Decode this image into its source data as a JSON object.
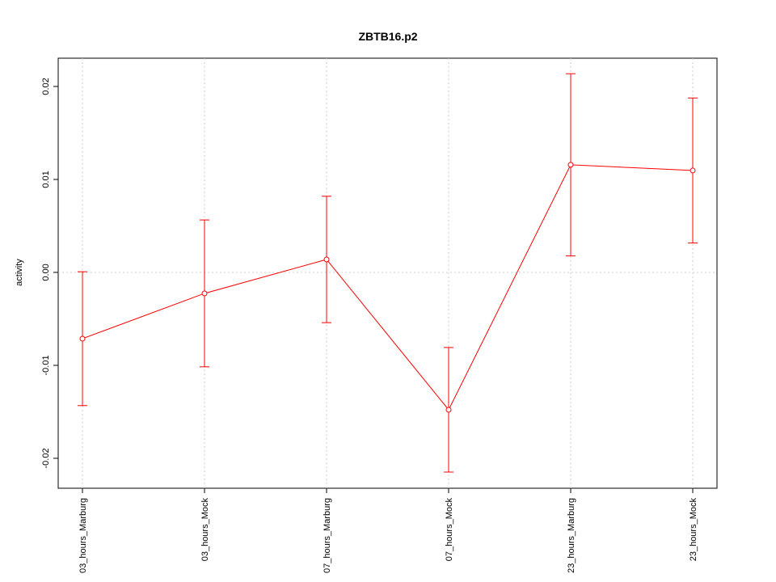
{
  "chart_data": {
    "type": "line",
    "title": "ZBTB16.p2",
    "y_label": "activity",
    "categories": [
      "03_hours_Marburg",
      "03_hours_Mock",
      "07_hours_Marburg",
      "07_hours_Mock",
      "23_hours_Marburg",
      "23_hours_Mock"
    ],
    "series": [
      {
        "color": "#ff0000",
        "values": [
          -0.00713,
          -0.00226,
          0.00139,
          -0.01478,
          0.01157,
          0.01096
        ],
        "errors": [
          0.0072,
          0.0079,
          0.0068,
          0.0067,
          0.0098,
          0.0078
        ]
      }
    ],
    "ylim": [
      -0.02322,
      0.02304
    ],
    "yticks": [
      -0.02,
      -0.01,
      {
        "value": 0,
        "label": "0.00"
      },
      0.01,
      0.02
    ],
    "grid": true,
    "reference_line": 0
  }
}
